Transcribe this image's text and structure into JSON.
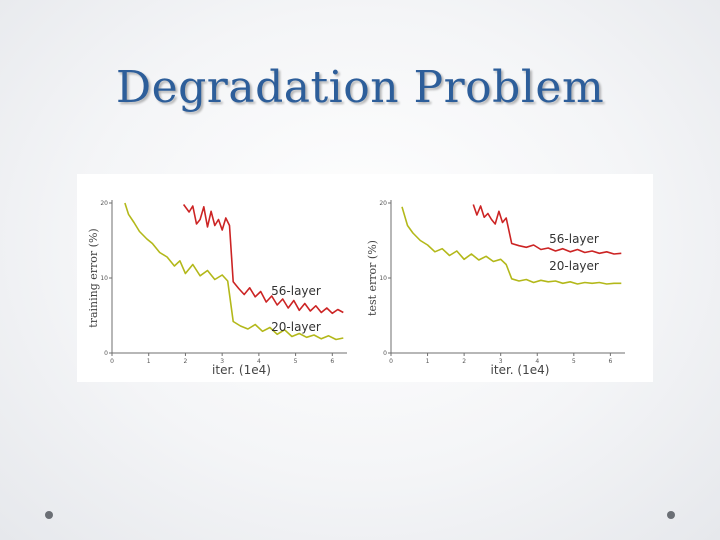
{
  "slide": {
    "title": "Degradation Problem"
  },
  "colors": {
    "series_56": "#cc2424",
    "series_20": "#b3b81a",
    "title": "#2d5e9a",
    "axis": "#6f6f6f"
  },
  "chart_data": [
    {
      "type": "line",
      "title": "",
      "xlabel": "iter. (1e4)",
      "ylabel": "training error (%)",
      "xlim": [
        0,
        6.4
      ],
      "ylim": [
        0,
        20
      ],
      "xticks": [
        "0",
        "1",
        "2",
        "3",
        "4",
        "5",
        "6"
      ],
      "yticks": [
        "0",
        "10",
        "20"
      ],
      "series": [
        {
          "name": "56-layer",
          "x": [
            1.95,
            2.1,
            2.2,
            2.3,
            2.4,
            2.5,
            2.6,
            2.7,
            2.8,
            2.9,
            3.0,
            3.1,
            3.2,
            3.3,
            3.45,
            3.6,
            3.75,
            3.9,
            4.05,
            4.2,
            4.35,
            4.5,
            4.65,
            4.8,
            4.95,
            5.1,
            5.25,
            5.4,
            5.55,
            5.7,
            5.85,
            6.0,
            6.15,
            6.3
          ],
          "y": [
            19.8,
            18.8,
            19.6,
            17.2,
            17.8,
            19.5,
            16.8,
            18.9,
            17.0,
            17.8,
            16.4,
            18.0,
            17.0,
            9.5,
            8.6,
            7.8,
            8.7,
            7.5,
            8.2,
            6.8,
            7.6,
            6.4,
            7.2,
            6.0,
            7.0,
            5.7,
            6.6,
            5.6,
            6.3,
            5.4,
            6.0,
            5.3,
            5.8,
            5.4
          ]
        },
        {
          "name": "20-layer",
          "x": [
            0.35,
            0.45,
            0.6,
            0.75,
            0.95,
            1.1,
            1.3,
            1.5,
            1.7,
            1.85,
            2.0,
            2.2,
            2.4,
            2.6,
            2.8,
            3.0,
            3.15,
            3.3,
            3.5,
            3.7,
            3.9,
            4.1,
            4.3,
            4.5,
            4.7,
            4.9,
            5.1,
            5.3,
            5.5,
            5.7,
            5.9,
            6.1,
            6.3
          ],
          "y": [
            20.0,
            18.5,
            17.4,
            16.2,
            15.2,
            14.6,
            13.4,
            12.8,
            11.6,
            12.3,
            10.6,
            11.8,
            10.3,
            11.0,
            9.8,
            10.4,
            9.6,
            4.2,
            3.6,
            3.2,
            3.8,
            2.9,
            3.4,
            2.5,
            3.1,
            2.2,
            2.6,
            2.1,
            2.4,
            1.9,
            2.3,
            1.8,
            2.0
          ]
        }
      ]
    },
    {
      "type": "line",
      "title": "",
      "xlabel": "iter. (1e4)",
      "ylabel": "test error (%)",
      "xlim": [
        0,
        6.4
      ],
      "ylim": [
        0,
        20
      ],
      "xticks": [
        "0",
        "1",
        "2",
        "3",
        "4",
        "5",
        "6"
      ],
      "yticks": [
        "0",
        "10",
        "20"
      ],
      "series": [
        {
          "name": "56-layer",
          "x": [
            2.25,
            2.35,
            2.45,
            2.55,
            2.65,
            2.75,
            2.85,
            2.95,
            3.05,
            3.15,
            3.3,
            3.5,
            3.7,
            3.9,
            4.1,
            4.3,
            4.5,
            4.7,
            4.9,
            5.1,
            5.3,
            5.5,
            5.7,
            5.9,
            6.1,
            6.3
          ],
          "y": [
            19.8,
            18.4,
            19.6,
            18.1,
            18.6,
            17.8,
            17.2,
            18.9,
            17.4,
            18.0,
            14.6,
            14.3,
            14.1,
            14.4,
            13.8,
            14.0,
            13.6,
            13.9,
            13.5,
            13.8,
            13.4,
            13.6,
            13.3,
            13.5,
            13.2,
            13.3
          ]
        },
        {
          "name": "20-layer",
          "x": [
            0.3,
            0.45,
            0.6,
            0.8,
            1.0,
            1.2,
            1.4,
            1.6,
            1.8,
            2.0,
            2.2,
            2.4,
            2.6,
            2.8,
            3.0,
            3.15,
            3.3,
            3.5,
            3.7,
            3.9,
            4.1,
            4.3,
            4.5,
            4.7,
            4.9,
            5.1,
            5.3,
            5.5,
            5.7,
            5.9,
            6.1,
            6.3
          ],
          "y": [
            19.5,
            17.0,
            16.0,
            15.0,
            14.4,
            13.5,
            13.9,
            13.0,
            13.6,
            12.5,
            13.2,
            12.4,
            12.9,
            12.2,
            12.5,
            11.8,
            9.9,
            9.6,
            9.8,
            9.4,
            9.7,
            9.5,
            9.6,
            9.3,
            9.5,
            9.2,
            9.4,
            9.3,
            9.4,
            9.2,
            9.3,
            9.3
          ]
        }
      ]
    }
  ]
}
